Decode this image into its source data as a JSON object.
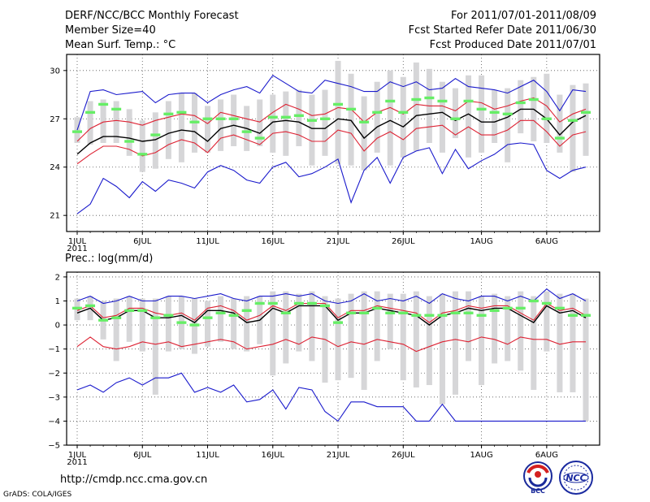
{
  "header": {
    "title": "DERF/NCC/BCC Monthly Forecast",
    "member_size": "Member Size=40",
    "variable": "Mean Surf. Temp.: °C",
    "period": "For 2011/07/01-2011/08/09",
    "fcst_started": "Fcst Started Refer Date 2011/06/30",
    "fcst_produced": "Fcst Produced Date 2011/07/01"
  },
  "panel2_label": "Prec.: log(mm/d)",
  "footer": {
    "url": "http://cmdp.ncc.cma.gov.cn",
    "grads": "GrADS: COLA/IGES"
  },
  "logos": {
    "bcc": "BCC",
    "ncc": "NCC"
  },
  "colors": {
    "box": "#d6d6d8",
    "obs": "#66ee66",
    "mean": "#000000",
    "band": "#dd2233",
    "extreme": "#1a1acc"
  },
  "chart_data": [
    {
      "type": "box",
      "title": "Mean Surf. Temp.: °C",
      "xlabel": "",
      "ylabel": "°C",
      "x": [
        "1JUL",
        "2JUL",
        "3JUL",
        "4JUL",
        "5JUL",
        "6JUL",
        "7JUL",
        "8JUL",
        "9JUL",
        "10JUL",
        "11JUL",
        "12JUL",
        "13JUL",
        "14JUL",
        "15JUL",
        "16JUL",
        "17JUL",
        "18JUL",
        "19JUL",
        "20JUL",
        "21JUL",
        "22JUL",
        "23JUL",
        "24JUL",
        "25JUL",
        "26JUL",
        "27JUL",
        "28JUL",
        "29JUL",
        "30JUL",
        "31JUL",
        "1AUG",
        "2AUG",
        "3AUG",
        "4AUG",
        "5AUG",
        "6AUG",
        "7AUG",
        "8AUG",
        "9AUG"
      ],
      "x_ticks": [
        "1JUL",
        "6JUL",
        "11JUL",
        "16JUL",
        "21JUL",
        "26JUL",
        "1AUG",
        "6AUG"
      ],
      "x_year": "2011",
      "ylim": [
        20,
        31
      ],
      "y_ticks": [
        21,
        24,
        27,
        30
      ],
      "y_tick_labels": [
        "21",
        "24",
        "27",
        "30"
      ],
      "grid": true,
      "series": [
        {
          "name": "max",
          "values": [
            26.3,
            28.7,
            28.8,
            28.5,
            28.6,
            28.7,
            28.0,
            28.5,
            28.6,
            28.6,
            28.0,
            28.5,
            28.8,
            29.0,
            28.6,
            29.7,
            29.2,
            28.7,
            28.6,
            29.4,
            29.2,
            29.0,
            28.7,
            28.7,
            29.3,
            29.0,
            29.3,
            28.8,
            28.9,
            29.5,
            29.0,
            28.9,
            28.8,
            28.6,
            29.0,
            29.4,
            28.7,
            27.5,
            28.8,
            28.7
          ]
        },
        {
          "name": "upper",
          "values": [
            25.6,
            26.4,
            26.8,
            26.9,
            26.8,
            26.6,
            26.9,
            27.1,
            27.3,
            27.2,
            26.7,
            27.4,
            27.2,
            27.0,
            26.8,
            27.4,
            27.9,
            27.6,
            27.2,
            27.3,
            27.7,
            27.6,
            26.8,
            27.4,
            27.7,
            27.3,
            27.9,
            27.8,
            27.8,
            27.5,
            28.1,
            28.0,
            27.6,
            27.8,
            28.1,
            28.3,
            27.8,
            26.8,
            27.3,
            27.6
          ]
        },
        {
          "name": "mean",
          "values": [
            24.8,
            25.5,
            25.9,
            25.9,
            25.8,
            25.6,
            25.7,
            26.1,
            26.3,
            26.2,
            25.6,
            26.4,
            26.6,
            26.4,
            26.1,
            26.8,
            26.9,
            26.8,
            26.4,
            26.4,
            27.0,
            26.9,
            25.8,
            26.5,
            26.9,
            26.5,
            27.2,
            27.3,
            27.4,
            26.9,
            27.3,
            26.8,
            26.8,
            27.1,
            27.6,
            27.6,
            27.0,
            26.0,
            26.8,
            27.2
          ]
        },
        {
          "name": "lower",
          "values": [
            24.2,
            24.8,
            25.3,
            25.3,
            25.1,
            24.7,
            24.9,
            25.4,
            25.7,
            25.5,
            24.9,
            25.8,
            26.0,
            25.7,
            25.4,
            26.1,
            26.2,
            26.0,
            25.6,
            25.6,
            26.3,
            26.1,
            25.0,
            25.8,
            26.2,
            25.7,
            26.4,
            26.5,
            26.6,
            26.0,
            26.5,
            26.0,
            26.0,
            26.3,
            26.9,
            26.9,
            26.2,
            25.3,
            26.0,
            26.2
          ]
        },
        {
          "name": "min",
          "values": [
            21.1,
            21.7,
            23.3,
            22.8,
            22.1,
            23.1,
            22.5,
            23.2,
            23.0,
            22.7,
            23.7,
            24.1,
            23.8,
            23.2,
            23.0,
            24.0,
            24.3,
            23.4,
            23.6,
            24.0,
            24.5,
            21.8,
            23.8,
            24.6,
            23.0,
            24.6,
            25.0,
            25.2,
            23.6,
            25.1,
            23.9,
            24.4,
            24.8,
            25.4,
            25.5,
            25.4,
            23.8,
            23.3,
            23.8,
            24.0
          ]
        }
      ],
      "box_low": [
        25.5,
        25.4,
        25.5,
        25.5,
        24.7,
        23.7,
        23.9,
        24.5,
        24.3,
        24.9,
        24.9,
        25.0,
        25.3,
        25.0,
        25.3,
        24.9,
        24.7,
        25.3,
        24.1,
        24.7,
        24.2,
        24.1,
        23.8,
        24.9,
        24.1,
        24.6,
        25.0,
        25.5,
        24.9,
        25.8,
        24.6,
        24.9,
        25.5,
        24.3,
        26.1,
        25.6,
        25.5,
        24.9,
        23.7,
        24.7
      ],
      "box_high": [
        27.1,
        28.1,
        28.2,
        28.1,
        27.6,
        26.9,
        27.4,
        28.1,
        28.6,
        28.6,
        27.8,
        28.2,
        28.5,
        27.8,
        28.2,
        28.5,
        28.7,
        28.8,
        28.5,
        28.8,
        30.6,
        29.8,
        28.4,
        29.3,
        30.0,
        29.6,
        30.5,
        30.1,
        29.3,
        28.9,
        29.7,
        29.7,
        28.8,
        28.9,
        29.4,
        29.6,
        29.8,
        28.5,
        29.1,
        29.2
      ],
      "observed": [
        26.2,
        27.4,
        27.9,
        27.6,
        25.6,
        24.8,
        26.0,
        27.3,
        27.4,
        26.8,
        27.0,
        27.0,
        27.0,
        26.2,
        25.8,
        27.1,
        27.1,
        27.2,
        26.9,
        27.0,
        27.9,
        27.6,
        26.8,
        27.4,
        28.1,
        27.4,
        28.2,
        28.3,
        28.1,
        27.0,
        28.1,
        27.6,
        27.4,
        27.3,
        28.0,
        28.2,
        27.0,
        25.8,
        26.9,
        27.4
      ]
    },
    {
      "type": "box",
      "title": "Prec.: log(mm/d)",
      "xlabel": "",
      "ylabel": "log(mm/d)",
      "x": [
        "1JUL",
        "2JUL",
        "3JUL",
        "4JUL",
        "5JUL",
        "6JUL",
        "7JUL",
        "8JUL",
        "9JUL",
        "10JUL",
        "11JUL",
        "12JUL",
        "13JUL",
        "14JUL",
        "15JUL",
        "16JUL",
        "17JUL",
        "18JUL",
        "19JUL",
        "20JUL",
        "21JUL",
        "22JUL",
        "23JUL",
        "24JUL",
        "25JUL",
        "26JUL",
        "27JUL",
        "28JUL",
        "29JUL",
        "30JUL",
        "31JUL",
        "1AUG",
        "2AUG",
        "3AUG",
        "4AUG",
        "5AUG",
        "6AUG",
        "7AUG",
        "8AUG",
        "9AUG"
      ],
      "x_ticks": [
        "1JUL",
        "6JUL",
        "11JUL",
        "16JUL",
        "21JUL",
        "26JUL",
        "1AUG",
        "6AUG"
      ],
      "x_year": "2011",
      "ylim": [
        -5,
        2.2
      ],
      "y_ticks": [
        -5,
        -4,
        -3,
        -2,
        -1,
        0,
        1,
        2
      ],
      "y_tick_labels": [
        "−5",
        "−4",
        "−3",
        "−2",
        "−1",
        "0",
        "1",
        "2"
      ],
      "grid": true,
      "series": [
        {
          "name": "max",
          "values": [
            1.0,
            1.2,
            0.9,
            1.0,
            1.2,
            1.0,
            1.0,
            1.2,
            1.2,
            1.1,
            1.2,
            1.3,
            1.1,
            1.0,
            1.2,
            1.2,
            1.3,
            1.2,
            1.3,
            1.0,
            0.9,
            1.0,
            1.3,
            1.0,
            1.1,
            1.0,
            1.2,
            0.9,
            1.3,
            1.1,
            1.0,
            1.2,
            1.2,
            1.0,
            1.2,
            1.0,
            1.5,
            1.1,
            1.3,
            1.0
          ]
        },
        {
          "name": "upper",
          "values": [
            0.6,
            0.8,
            0.3,
            0.4,
            0.7,
            0.7,
            0.5,
            0.4,
            0.5,
            0.2,
            0.7,
            0.8,
            0.6,
            0.2,
            0.4,
            0.8,
            0.6,
            0.9,
            0.9,
            0.9,
            0.3,
            0.6,
            0.6,
            0.8,
            0.7,
            0.6,
            0.5,
            0.1,
            0.5,
            0.6,
            0.8,
            0.7,
            0.8,
            0.8,
            0.5,
            0.2,
            0.9,
            0.6,
            0.7,
            0.4
          ]
        },
        {
          "name": "mean",
          "values": [
            0.5,
            0.7,
            0.2,
            0.3,
            0.6,
            0.6,
            0.3,
            0.3,
            0.4,
            0.1,
            0.6,
            0.6,
            0.5,
            0.1,
            0.2,
            0.7,
            0.5,
            0.8,
            0.8,
            0.8,
            0.2,
            0.5,
            0.5,
            0.7,
            0.6,
            0.5,
            0.4,
            0.0,
            0.4,
            0.5,
            0.7,
            0.6,
            0.7,
            0.7,
            0.4,
            0.1,
            0.8,
            0.5,
            0.6,
            0.3
          ]
        },
        {
          "name": "lower",
          "values": [
            -0.9,
            -0.5,
            -0.9,
            -1.0,
            -0.9,
            -0.7,
            -0.8,
            -0.7,
            -0.9,
            -0.8,
            -0.7,
            -0.6,
            -0.7,
            -1.0,
            -0.9,
            -0.8,
            -0.6,
            -0.8,
            -0.5,
            -0.6,
            -0.9,
            -0.7,
            -0.8,
            -0.6,
            -0.7,
            -0.8,
            -1.1,
            -0.9,
            -0.7,
            -0.6,
            -0.7,
            -0.5,
            -0.6,
            -0.8,
            -0.5,
            -0.6,
            -0.6,
            -0.8,
            -0.7,
            -0.7
          ]
        },
        {
          "name": "min",
          "values": [
            -2.7,
            -2.5,
            -2.8,
            -2.4,
            -2.2,
            -2.5,
            -2.2,
            -2.2,
            -2.0,
            -2.8,
            -2.6,
            -2.8,
            -2.5,
            -3.2,
            -3.1,
            -2.7,
            -3.5,
            -2.6,
            -2.7,
            -3.6,
            -4.0,
            -3.2,
            -3.2,
            -3.4,
            -3.4,
            -3.4,
            -4.0,
            -4.0,
            -3.3,
            -4.0,
            -4.0,
            -4.0,
            -4.0,
            -4.0,
            -4.0,
            -4.0,
            -4.0,
            -4.0,
            -4.0,
            -4.0
          ]
        }
      ],
      "box_low": [
        0.2,
        0.2,
        -0.6,
        -1.5,
        -0.7,
        -1.1,
        -2.9,
        -1.1,
        -1.0,
        -1.2,
        -0.9,
        -0.7,
        -1.0,
        -1.1,
        -0.8,
        -2.1,
        -1.6,
        -1.1,
        -1.5,
        -2.4,
        -2.3,
        -2.2,
        -2.7,
        -1.5,
        -1.0,
        -2.3,
        -2.6,
        -2.5,
        -3.3,
        -2.9,
        -1.5,
        -2.5,
        -1.6,
        -1.5,
        -1.9,
        -2.7,
        -1.1,
        -2.8,
        -2.8,
        -4.0
      ],
      "box_high": [
        1.1,
        1.2,
        1.0,
        1.1,
        1.2,
        1.1,
        1.1,
        1.2,
        1.2,
        1.1,
        1.0,
        1.2,
        1.1,
        1.2,
        1.2,
        1.4,
        1.4,
        1.3,
        1.4,
        1.2,
        1.1,
        1.3,
        1.4,
        1.4,
        1.3,
        1.3,
        1.4,
        1.2,
        1.3,
        1.4,
        1.4,
        1.2,
        1.3,
        1.2,
        1.4,
        1.2,
        1.4,
        1.3,
        1.3,
        1.1
      ],
      "observed": [
        0.7,
        0.8,
        0.2,
        0.3,
        0.6,
        0.6,
        0.3,
        0.4,
        0.1,
        0.0,
        0.3,
        0.5,
        0.4,
        0.6,
        0.9,
        0.9,
        0.5,
        0.9,
        0.9,
        0.8,
        0.1,
        0.5,
        0.5,
        0.7,
        0.5,
        0.5,
        0.4,
        0.4,
        0.4,
        0.5,
        0.5,
        0.4,
        0.6,
        0.7,
        0.7,
        1.0,
        0.9,
        0.7,
        0.4,
        0.4
      ]
    }
  ]
}
